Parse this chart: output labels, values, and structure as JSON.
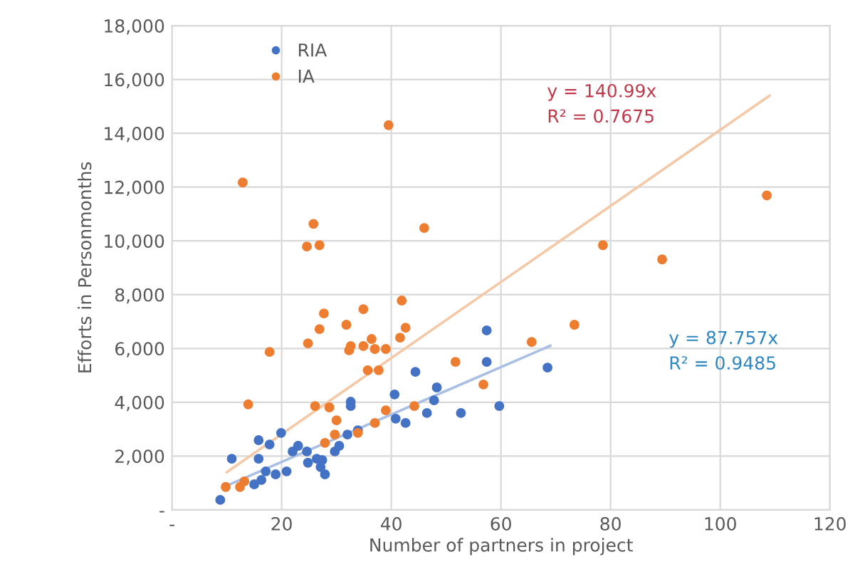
{
  "chart_data": {
    "type": "scatter",
    "xlabel": "Number of partners in project",
    "ylabel": "Efforts in Personmonths",
    "xlim": [
      0,
      120
    ],
    "xticks": [
      {
        "value": 0,
        "label": "-"
      },
      20,
      40,
      60,
      80,
      100,
      120
    ],
    "ylim": [
      0,
      18000
    ],
    "yticks": [
      {
        "value": 0,
        "label": "-"
      },
      {
        "value": 2000,
        "label": "2,000"
      },
      {
        "value": 4000,
        "label": "4,000"
      },
      {
        "value": 6000,
        "label": "6,000"
      },
      {
        "value": 8000,
        "label": "8,000"
      },
      {
        "value": 10000,
        "label": "10,000"
      },
      {
        "value": 12000,
        "label": "12,000"
      },
      {
        "value": 14000,
        "label": "14,000"
      },
      {
        "value": 16000,
        "label": "16,000"
      },
      {
        "value": 18000,
        "label": "18,000"
      }
    ],
    "grid": true,
    "legend": "top left",
    "marker": "circle",
    "series": [
      {
        "name": "RIA",
        "color": "#4472c4",
        "x": [
          8.8,
          10.9,
          19.9,
          15.8,
          17.8,
          15.8,
          17.1,
          15,
          16.3,
          18.9,
          20.9,
          22,
          23,
          24.6,
          24.8,
          26.4,
          27.4,
          27.9,
          27.1,
          29.7,
          30.5,
          32.6,
          32.6,
          32,
          33.9,
          40.6,
          40.8,
          42.6,
          44.4,
          46.5,
          47.8,
          48.3,
          52.7,
          57.4,
          57.4,
          59.7,
          68.5
        ],
        "values": [
          370,
          1900,
          2860,
          2590,
          2430,
          1900,
          1430,
          950,
          1110,
          1320,
          1430,
          2170,
          2380,
          2170,
          1750,
          1900,
          1850,
          1320,
          1590,
          2170,
          2380,
          4020,
          3860,
          2800,
          2960,
          4290,
          3390,
          3230,
          5130,
          3600,
          4070,
          4550,
          3600,
          6670,
          5500,
          3860,
          5290
        ]
      },
      {
        "name": "IA",
        "color": "#ed7d31",
        "x": [
          9.8,
          12.4,
          13.2,
          12.9,
          13.9,
          17.8,
          24.8,
          25.8,
          24.6,
          26.9,
          26.9,
          27.7,
          31.8,
          34.9,
          39.5,
          41.9,
          32.3,
          32.6,
          34.9,
          36.4,
          37,
          39,
          41.6,
          42.6,
          37.7,
          35.7,
          28.7,
          26.1,
          30,
          29.7,
          33.9,
          37,
          39,
          44.2,
          27.9,
          46,
          51.7,
          56.8,
          65.6,
          73.4,
          78.6,
          89.4,
          108.5
        ],
        "values": [
          850,
          850,
          1060,
          12170,
          3920,
          5870,
          6190,
          10630,
          9790,
          9840,
          6720,
          7300,
          6880,
          7460,
          14300,
          7780,
          5930,
          6090,
          6090,
          6350,
          5980,
          5980,
          6400,
          6770,
          5190,
          5190,
          3810,
          3860,
          3330,
          2800,
          2860,
          3230,
          3700,
          3860,
          2490,
          10480,
          5500,
          4660,
          6240,
          6880,
          9840,
          9310,
          11690
        ]
      },
      {
        "type": "line",
        "color": "#f4c9a8",
        "x": [
          10,
          109
        ],
        "values": [
          1400,
          15400
        ],
        "marker": "none"
      },
      {
        "type": "line",
        "color": "#a9bfe3",
        "x": [
          10,
          69
        ],
        "values": [
          900,
          6100
        ],
        "marker": "none"
      }
    ],
    "annotations": [
      "y = 140.99x\nR² = 0.7675",
      "y = 87.757x\nR² = 0.9485"
    ]
  }
}
